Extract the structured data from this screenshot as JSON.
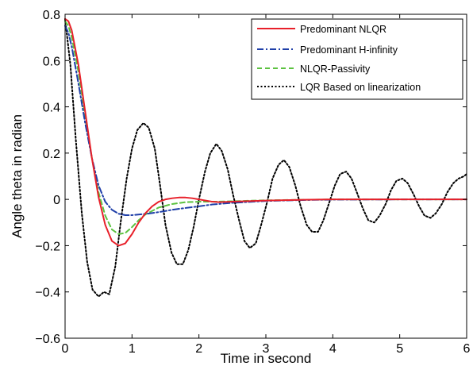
{
  "chart_data": {
    "type": "line",
    "xlabel": "Time in second",
    "ylabel": "Angle theta in radian",
    "xlim": [
      0,
      6
    ],
    "ylim": [
      -0.6,
      0.8
    ],
    "xticks": [
      "0",
      "1",
      "2",
      "3",
      "4",
      "5",
      "6"
    ],
    "yticks": [
      "0.8",
      "0.6",
      "0.4",
      "0.2",
      "0",
      "−0.2",
      "−0.4",
      "−0.6"
    ],
    "grid": false,
    "legend_position": "top-right",
    "series": [
      {
        "name": "Predominant NLQR",
        "color": "#e8202a",
        "style": "solid",
        "x": [
          0,
          0.05,
          0.1,
          0.2,
          0.3,
          0.4,
          0.5,
          0.6,
          0.7,
          0.8,
          0.9,
          1.0,
          1.1,
          1.2,
          1.3,
          1.4,
          1.5,
          1.6,
          1.7,
          1.8,
          1.9,
          2.0,
          2.1,
          2.2,
          2.3,
          2.5,
          3.0,
          3.5,
          4.0,
          5.0,
          6.0
        ],
        "y": [
          0.78,
          0.77,
          0.73,
          0.58,
          0.38,
          0.18,
          0.01,
          -0.11,
          -0.18,
          -0.2,
          -0.19,
          -0.15,
          -0.1,
          -0.06,
          -0.03,
          -0.01,
          0.0,
          0.005,
          0.008,
          0.008,
          0.005,
          0.0,
          -0.005,
          -0.01,
          -0.012,
          -0.01,
          -0.005,
          -0.002,
          0.0,
          0.0,
          0.0
        ]
      },
      {
        "name": "Predominant H-infinity",
        "color": "#1f3fa8",
        "style": "dashdot",
        "x": [
          0,
          0.05,
          0.1,
          0.2,
          0.3,
          0.4,
          0.5,
          0.6,
          0.7,
          0.8,
          0.9,
          1.0,
          1.2,
          1.4,
          1.6,
          1.8,
          2.0,
          2.2,
          2.5,
          3.0,
          3.5,
          4.0,
          5.0,
          6.0
        ],
        "y": [
          0.75,
          0.72,
          0.66,
          0.5,
          0.33,
          0.18,
          0.06,
          -0.01,
          -0.045,
          -0.062,
          -0.068,
          -0.068,
          -0.063,
          -0.055,
          -0.045,
          -0.037,
          -0.03,
          -0.022,
          -0.015,
          -0.007,
          -0.003,
          -0.001,
          0.0,
          0.0
        ]
      },
      {
        "name": "NLQR-Passivity",
        "color": "#5cc240",
        "style": "dashed",
        "x": [
          0,
          0.05,
          0.1,
          0.2,
          0.3,
          0.4,
          0.5,
          0.6,
          0.7,
          0.8,
          0.9,
          1.0,
          1.1,
          1.2,
          1.4,
          1.6,
          1.8,
          2.0,
          2.2,
          2.5,
          3.0,
          3.5,
          4.0,
          5.0,
          6.0
        ],
        "y": [
          0.77,
          0.75,
          0.7,
          0.55,
          0.36,
          0.18,
          0.03,
          -0.07,
          -0.13,
          -0.15,
          -0.145,
          -0.12,
          -0.09,
          -0.065,
          -0.035,
          -0.02,
          -0.012,
          -0.01,
          -0.01,
          -0.008,
          -0.004,
          -0.002,
          0.0,
          0.0,
          0.0
        ]
      },
      {
        "name": "LQR Based on linearization",
        "color": "#000000",
        "style": "dotted",
        "x": [
          0,
          0.08,
          0.16,
          0.25,
          0.33,
          0.41,
          0.5,
          0.58,
          0.66,
          0.75,
          0.83,
          0.92,
          1.0,
          1.08,
          1.17,
          1.25,
          1.34,
          1.42,
          1.5,
          1.59,
          1.67,
          1.76,
          1.84,
          1.92,
          2.0,
          2.09,
          2.17,
          2.26,
          2.34,
          2.43,
          2.51,
          2.6,
          2.68,
          2.76,
          2.85,
          2.93,
          3.02,
          3.1,
          3.19,
          3.27,
          3.35,
          3.44,
          3.52,
          3.61,
          3.69,
          3.78,
          3.86,
          3.94,
          4.03,
          4.11,
          4.2,
          4.28,
          4.36,
          4.45,
          4.53,
          4.62,
          4.7,
          4.79,
          4.87,
          4.95,
          5.04,
          5.12,
          5.21,
          5.29,
          5.37,
          5.46,
          5.54,
          5.63,
          5.71,
          5.8,
          5.88,
          5.96,
          6.0
        ],
        "y": [
          0.78,
          0.58,
          0.26,
          -0.06,
          -0.27,
          -0.39,
          -0.42,
          -0.4,
          -0.41,
          -0.29,
          -0.1,
          0.09,
          0.22,
          0.3,
          0.33,
          0.31,
          0.22,
          0.06,
          -0.11,
          -0.23,
          -0.28,
          -0.28,
          -0.22,
          -0.12,
          0.0,
          0.12,
          0.2,
          0.24,
          0.21,
          0.13,
          0.02,
          -0.09,
          -0.18,
          -0.21,
          -0.19,
          -0.11,
          -0.01,
          0.09,
          0.15,
          0.17,
          0.14,
          0.06,
          -0.03,
          -0.11,
          -0.14,
          -0.14,
          -0.09,
          -0.02,
          0.06,
          0.11,
          0.12,
          0.09,
          0.03,
          -0.04,
          -0.09,
          -0.1,
          -0.07,
          -0.02,
          0.04,
          0.08,
          0.09,
          0.07,
          0.02,
          -0.03,
          -0.07,
          -0.08,
          -0.06,
          -0.02,
          0.03,
          0.07,
          0.09,
          0.1,
          0.11
        ]
      }
    ]
  }
}
